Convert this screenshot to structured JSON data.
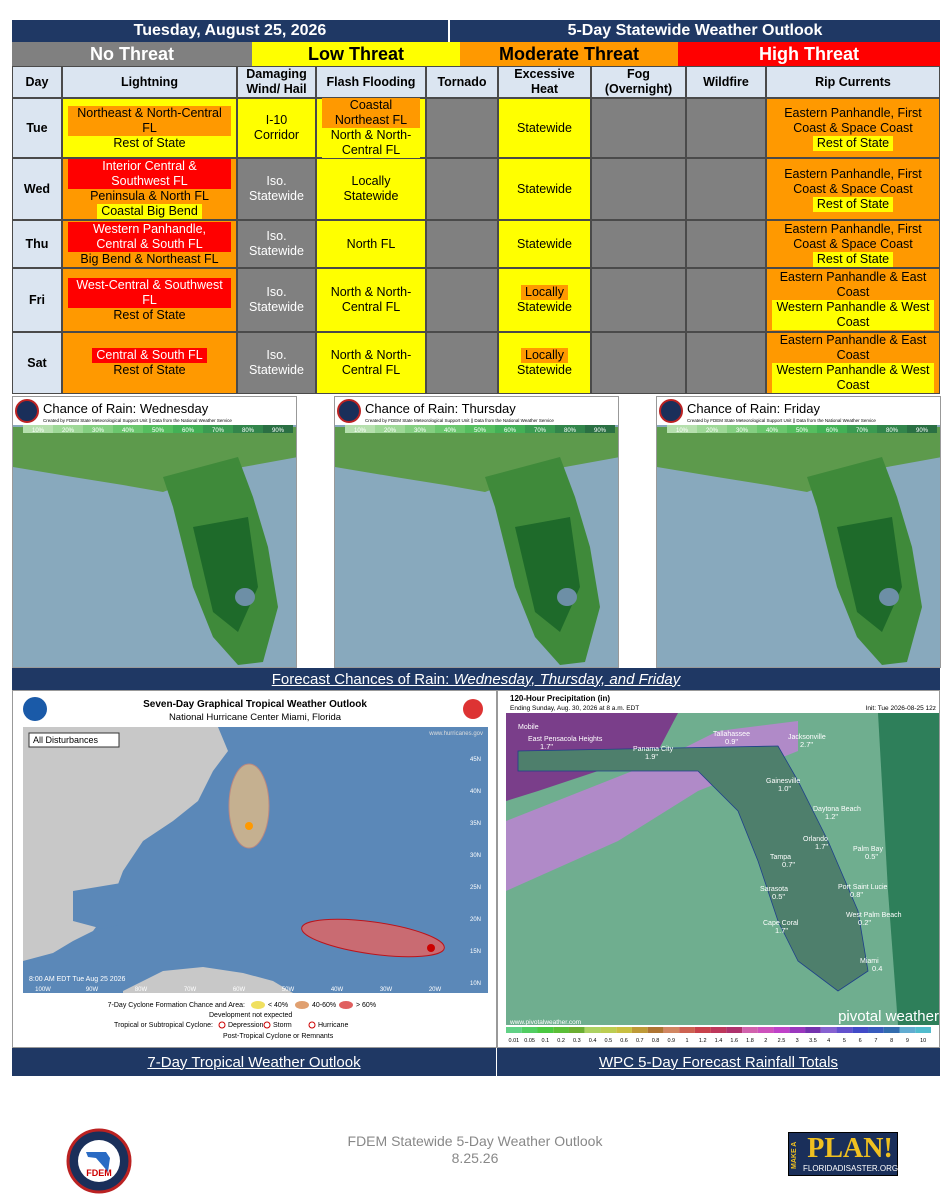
{
  "header": {
    "date": "Tuesday, August 25, 2026",
    "title": "5-Day Statewide Weather Outlook"
  },
  "threat_levels": [
    {
      "label": "No Threat",
      "color": "#808080",
      "text_color": "#ffffff"
    },
    {
      "label": "Low Threat",
      "color": "#ffff00",
      "text_color": "#000000"
    },
    {
      "label": "Moderate Threat",
      "color": "#ff9900",
      "text_color": "#000000"
    },
    {
      "label": "High Threat",
      "color": "#ff0000",
      "text_color": "#ffffff"
    }
  ],
  "table": {
    "columns": [
      "Day",
      "Lightning",
      "Damaging Wind/ Hail",
      "Flash Flooding",
      "Tornado",
      "Excessive Heat",
      "Fog (Overnight)",
      "Wildfire",
      "Rip Currents"
    ],
    "rows": [
      {
        "day": "Tue",
        "cells": [
          {
            "level": 1,
            "items": [
              {
                "text": "Northeast & North-Central FL",
                "level": 2
              },
              {
                "text": "Rest of State",
                "level": 1
              }
            ]
          },
          {
            "level": 1,
            "items": [
              {
                "text": "I-10 Corridor",
                "level": 1
              }
            ]
          },
          {
            "level": 1,
            "items": [
              {
                "text": "Coastal Northeast FL",
                "level": 2
              },
              {
                "text": "North & North-Central FL",
                "level": 1
              }
            ]
          },
          {
            "level": 0,
            "items": []
          },
          {
            "level": 1,
            "items": [
              {
                "text": "Statewide",
                "level": 1
              }
            ]
          },
          {
            "level": 0,
            "items": []
          },
          {
            "level": 0,
            "items": []
          },
          {
            "level": 2,
            "items": [
              {
                "text": "Eastern Panhandle, First Coast & Space Coast",
                "level": 2
              },
              {
                "text": "Rest of State",
                "level": 1
              }
            ]
          }
        ]
      },
      {
        "day": "Wed",
        "cells": [
          {
            "level": 2,
            "items": [
              {
                "text": "Interior Central & Southwest FL",
                "level": 3
              },
              {
                "text": "Peninsula & North FL",
                "level": 2
              },
              {
                "text": "Coastal Big Bend",
                "level": 1
              }
            ]
          },
          {
            "level": 0,
            "items": [
              {
                "text": "Iso. Statewide",
                "level": 0
              }
            ]
          },
          {
            "level": 1,
            "items": [
              {
                "text": "Locally Statewide",
                "level": 1
              }
            ]
          },
          {
            "level": 0,
            "items": []
          },
          {
            "level": 1,
            "items": [
              {
                "text": "Statewide",
                "level": 1
              }
            ]
          },
          {
            "level": 0,
            "items": []
          },
          {
            "level": 0,
            "items": []
          },
          {
            "level": 2,
            "items": [
              {
                "text": "Eastern Panhandle, First Coast & Space Coast",
                "level": 2
              },
              {
                "text": "Rest of State",
                "level": 1
              }
            ]
          }
        ]
      },
      {
        "day": "Thu",
        "cells": [
          {
            "level": 2,
            "items": [
              {
                "text": "Western Panhandle, Central & South FL",
                "level": 3
              },
              {
                "text": "Big Bend & Northeast FL",
                "level": 2
              }
            ]
          },
          {
            "level": 0,
            "items": [
              {
                "text": "Iso. Statewide",
                "level": 0
              }
            ]
          },
          {
            "level": 1,
            "items": [
              {
                "text": "North FL",
                "level": 1
              }
            ]
          },
          {
            "level": 0,
            "items": []
          },
          {
            "level": 1,
            "items": [
              {
                "text": "Statewide",
                "level": 1
              }
            ]
          },
          {
            "level": 0,
            "items": []
          },
          {
            "level": 0,
            "items": []
          },
          {
            "level": 2,
            "items": [
              {
                "text": "Eastern Panhandle, First Coast & Space Coast",
                "level": 2
              },
              {
                "text": "Rest of State",
                "level": 1
              }
            ]
          }
        ]
      },
      {
        "day": "Fri",
        "cells": [
          {
            "level": 2,
            "items": [
              {
                "text": "West-Central & Southwest FL",
                "level": 3
              },
              {
                "text": "Rest of State",
                "level": 2
              }
            ]
          },
          {
            "level": 0,
            "items": [
              {
                "text": "Iso. Statewide",
                "level": 0
              }
            ]
          },
          {
            "level": 1,
            "items": [
              {
                "text": "North & North-Central FL",
                "level": 1
              }
            ]
          },
          {
            "level": 0,
            "items": []
          },
          {
            "level": 1,
            "items": [
              {
                "text": "Locally",
                "level": 2
              },
              {
                "text": "Statewide",
                "level": 1
              }
            ]
          },
          {
            "level": 0,
            "items": []
          },
          {
            "level": 0,
            "items": []
          },
          {
            "level": 2,
            "items": [
              {
                "text": "Eastern Panhandle & East Coast",
                "level": 2
              },
              {
                "text": "Western Panhandle & West Coast",
                "level": 1
              }
            ]
          }
        ]
      },
      {
        "day": "Sat",
        "cells": [
          {
            "level": 2,
            "items": [
              {
                "text": "Central & South FL",
                "level": 3
              },
              {
                "text": "Rest of State",
                "level": 2
              }
            ]
          },
          {
            "level": 0,
            "items": [
              {
                "text": "Iso. Statewide",
                "level": 0
              }
            ]
          },
          {
            "level": 1,
            "items": [
              {
                "text": "North & North-Central FL",
                "level": 1
              }
            ]
          },
          {
            "level": 0,
            "items": []
          },
          {
            "level": 1,
            "items": [
              {
                "text": "Locally",
                "level": 2
              },
              {
                "text": "Statewide",
                "level": 1
              }
            ]
          },
          {
            "level": 0,
            "items": []
          },
          {
            "level": 0,
            "items": []
          },
          {
            "level": 2,
            "items": [
              {
                "text": "Eastern Panhandle & East Coast",
                "level": 2
              },
              {
                "text": "Western Panhandle & West Coast",
                "level": 1
              }
            ]
          }
        ]
      }
    ]
  },
  "rain_maps": {
    "subtitle": "Created by FDEM State Meteorological Support Unit || Data from the National Weather Service",
    "scale": [
      "10%",
      "20%",
      "30%",
      "40%",
      "50%",
      "60%",
      "70%",
      "80%",
      "90%"
    ],
    "maps": [
      {
        "title": "Chance of Rain: Wednesday"
      },
      {
        "title": "Chance of Rain: Thursday"
      },
      {
        "title": "Chance of Rain: Friday"
      }
    ],
    "caption": "Forecast Chances of Rain: ",
    "caption_days": "Wednesday, Thursday, and Friday"
  },
  "tropical": {
    "title": "Seven-Day Graphical Tropical Weather Outlook",
    "subtitle": "National Hurricane Center  Miami, Florida",
    "tab": "All Disturbances",
    "url": "www.hurricanes.gov",
    "time": "8:00 AM EDT Tue Aug 25 2026",
    "lat_labels": [
      "45N",
      "40N",
      "35N",
      "30N",
      "25N",
      "20N",
      "15N",
      "10N"
    ],
    "lon_labels": [
      "100W",
      "90W",
      "80W",
      "70W",
      "60W",
      "50W",
      "40W",
      "30W",
      "20W"
    ],
    "legend_title": "7-Day Cyclone Formation Chance and Area:",
    "legend_chances": [
      "< 40%",
      "40-60%",
      "> 60%"
    ],
    "legend_not_expected": "Development not expected",
    "legend_cyclone": "Tropical or Subtropical Cyclone:",
    "legend_types": [
      "Depression",
      "Storm",
      "Hurricane"
    ],
    "legend_post": "Post-Tropical Cyclone or Remnants",
    "caption": "7-Day Tropical Weather Outlook"
  },
  "rainfall": {
    "title": "120-Hour Precipitation (in)",
    "subtitle": "Ending Sunday, Aug. 30, 2026 at 8 a.m. EDT",
    "init": "Init: Tue 2026-08-25 12z",
    "site": "www.pivotalweather.com",
    "brand": "pivotal weather",
    "cities": [
      {
        "name": "Mobile"
      },
      {
        "name": "East Pensacola Heights",
        "amount": "1.7\""
      },
      {
        "name": "Panama City",
        "amount": "1.9\""
      },
      {
        "name": "Tallahassee",
        "amount": "0.9\""
      },
      {
        "name": "Jacksonville",
        "amount": "2.7\""
      },
      {
        "name": "Gainesville",
        "amount": "1.0\""
      },
      {
        "name": "Daytona Beach",
        "amount": "1.2\""
      },
      {
        "name": "Orlando",
        "amount": "1.7\""
      },
      {
        "name": "Tampa",
        "amount": "0.7\""
      },
      {
        "name": "Palm Bay",
        "amount": "0.5\""
      },
      {
        "name": "Sarasota",
        "amount": "0.5\""
      },
      {
        "name": "Port Saint Lucie",
        "amount": "0.8\""
      },
      {
        "name": "West Palm Beach",
        "amount": "0.2\""
      },
      {
        "name": "Cape Coral",
        "amount": "1.7\""
      },
      {
        "name": "Miami",
        "amount": "0.4"
      }
    ],
    "scale": [
      "0.01",
      "0.05",
      "0.1",
      "0.2",
      "0.3",
      "0.4",
      "0.5",
      "0.6",
      "0.7",
      "0.8",
      "0.9",
      "1",
      "1.2",
      "1.4",
      "1.6",
      "1.8",
      "2",
      "2.5",
      "3",
      "3.5",
      "4",
      "5",
      "6",
      "7",
      "8",
      "9",
      "10"
    ],
    "caption": "WPC 5-Day Forecast Rainfall Totals"
  },
  "footer": {
    "title": "FDEM Statewide 5-Day Weather Outlook",
    "date": "8.25.26",
    "seal": "FDEM",
    "plan_make": "MAKE A",
    "plan_word": "PLAN!",
    "plan_site": "FLORIDADISASTER.ORG"
  }
}
